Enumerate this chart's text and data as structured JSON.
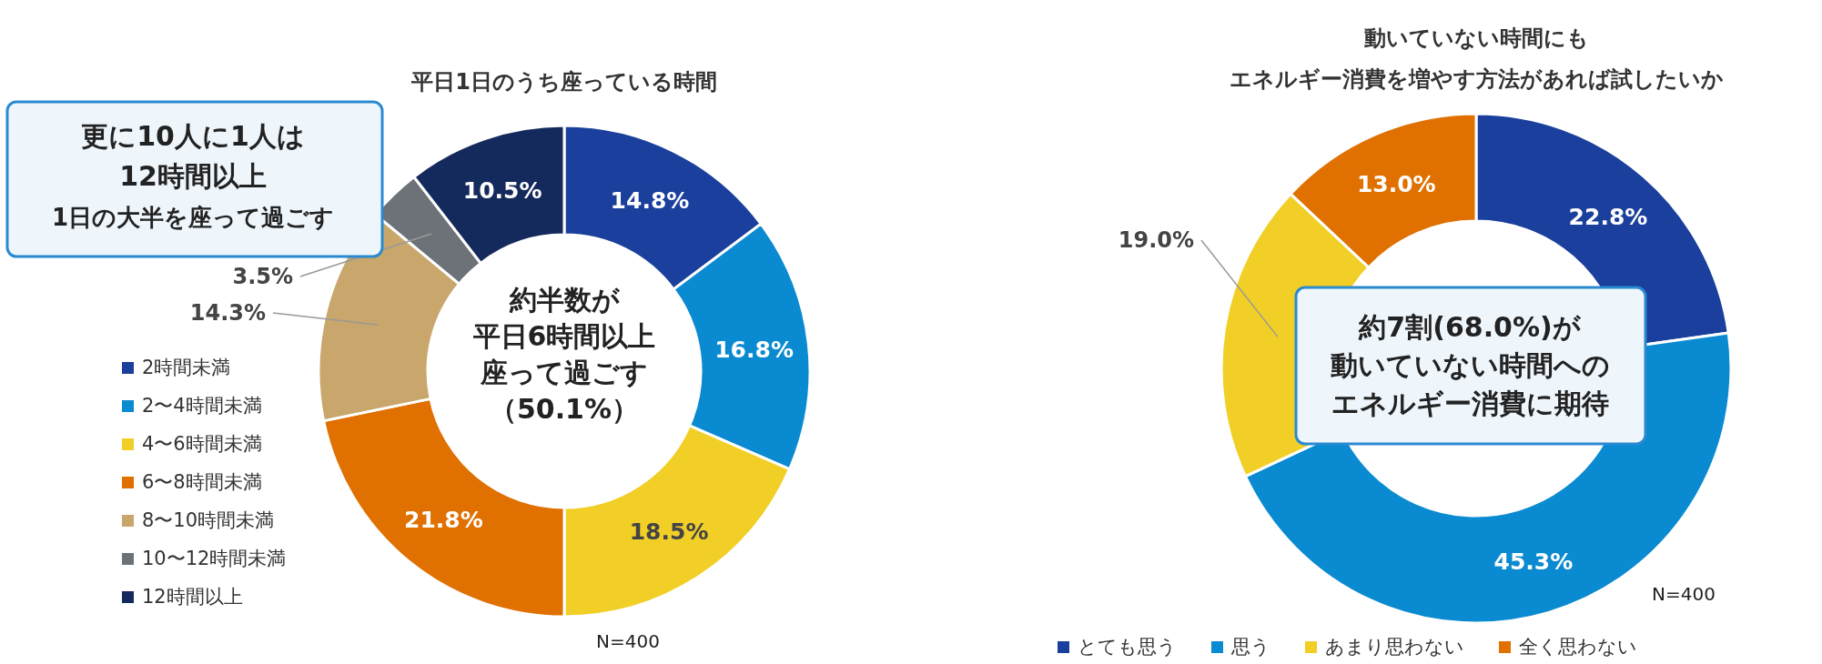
{
  "chart_data": [
    {
      "type": "donut",
      "title": "平日1日のうち座っている時間",
      "categories": [
        "2時間未満",
        "2〜4時間未満",
        "4〜6時間未満",
        "6〜8時間未満",
        "8〜10時間未満",
        "10〜12時間未満",
        "12時間以上"
      ],
      "values": [
        14.8,
        16.8,
        18.5,
        21.8,
        14.3,
        3.5,
        10.5
      ],
      "colors": [
        "#1a3f9c",
        "#0a8ad0",
        "#f2cf27",
        "#e07000",
        "#c9a66b",
        "#6d7278",
        "#152a5c"
      ],
      "value_labels": [
        "14.8%",
        "16.8%",
        "18.5%",
        "21.8%",
        "14.3%",
        "3.5%",
        "10.5%"
      ],
      "legend": "left",
      "annotations": [
        "約半数が",
        "平日6時間以上",
        "座って過ごす",
        "（50.1%）",
        "更に10人に1人は",
        "12時間以上",
        "1日の大半を座って過ごす",
        "N=400"
      ]
    },
    {
      "type": "donut",
      "title": "動いていない時間にも",
      "subtitle": "エネルギー消費を増やす方法があれば試したいか",
      "categories": [
        "とても思う",
        "思う",
        "あまり思わない",
        "全く思わない"
      ],
      "values": [
        22.8,
        45.3,
        19.0,
        13.0
      ],
      "colors": [
        "#1a3f9c",
        "#0a8ad0",
        "#f2cf27",
        "#e07000"
      ],
      "value_labels": [
        "22.8%",
        "45.3%",
        "19.0%",
        "13.0%"
      ],
      "legend": "bottom",
      "annotations": [
        "約7割(68.0%)が",
        "動いていない時間への",
        "エネルギー消費に期待",
        "N=400"
      ]
    }
  ]
}
